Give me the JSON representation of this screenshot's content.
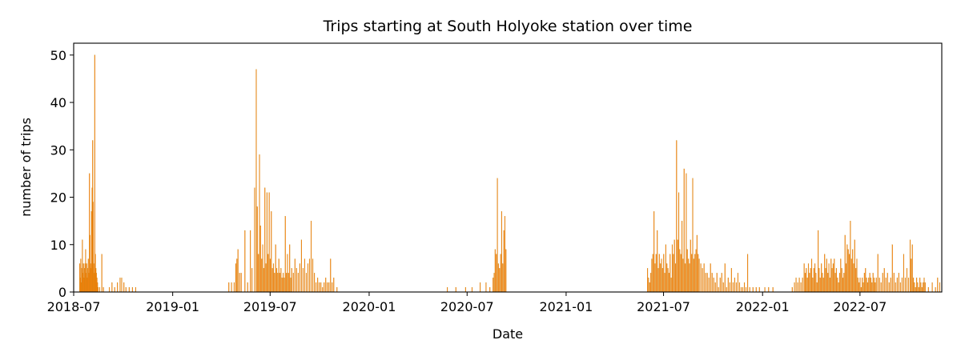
{
  "chart_data": {
    "type": "bar",
    "title": "Trips starting at South Holyoke station over time",
    "xlabel": "Date",
    "ylabel": "number of trips",
    "xlim": [
      "2018-07-01",
      "2022-11-30"
    ],
    "ylim": [
      0,
      52.5
    ],
    "x_ticks": [
      "2018-07",
      "2019-01",
      "2019-07",
      "2020-01",
      "2020-07",
      "2021-01",
      "2021-07",
      "2022-01",
      "2022-07"
    ],
    "y_ticks": [
      0,
      10,
      20,
      30,
      40,
      50
    ],
    "grid": false,
    "bar_color": "#ff7f0e",
    "bar_edge_color": "#b8860b",
    "points": [
      [
        "2018-07-12",
        6
      ],
      [
        "2018-07-13",
        3
      ],
      [
        "2018-07-14",
        7
      ],
      [
        "2018-07-15",
        2
      ],
      [
        "2018-07-16",
        5
      ],
      [
        "2018-07-17",
        11
      ],
      [
        "2018-07-18",
        4
      ],
      [
        "2018-07-19",
        6
      ],
      [
        "2018-07-20",
        3
      ],
      [
        "2018-07-21",
        5
      ],
      [
        "2018-07-22",
        6
      ],
      [
        "2018-07-23",
        9
      ],
      [
        "2018-07-24",
        4
      ],
      [
        "2018-07-25",
        6
      ],
      [
        "2018-07-26",
        3
      ],
      [
        "2018-07-27",
        5
      ],
      [
        "2018-07-28",
        7
      ],
      [
        "2018-07-29",
        4
      ],
      [
        "2018-07-30",
        25
      ],
      [
        "2018-07-31",
        12
      ],
      [
        "2018-08-01",
        6
      ],
      [
        "2018-08-02",
        5
      ],
      [
        "2018-08-03",
        17
      ],
      [
        "2018-08-04",
        22
      ],
      [
        "2018-08-05",
        32
      ],
      [
        "2018-08-06",
        19
      ],
      [
        "2018-08-07",
        6
      ],
      [
        "2018-08-08",
        4
      ],
      [
        "2018-08-09",
        50
      ],
      [
        "2018-08-10",
        8
      ],
      [
        "2018-08-11",
        5
      ],
      [
        "2018-08-12",
        4
      ],
      [
        "2018-08-13",
        3
      ],
      [
        "2018-08-14",
        2
      ],
      [
        "2018-08-15",
        1
      ],
      [
        "2018-08-18",
        1
      ],
      [
        "2018-08-22",
        8
      ],
      [
        "2018-08-25",
        1
      ],
      [
        "2018-09-05",
        1
      ],
      [
        "2018-09-10",
        2
      ],
      [
        "2018-09-15",
        1
      ],
      [
        "2018-09-20",
        2
      ],
      [
        "2018-09-25",
        3
      ],
      [
        "2018-09-28",
        3
      ],
      [
        "2018-10-02",
        2
      ],
      [
        "2018-10-06",
        1
      ],
      [
        "2018-10-12",
        1
      ],
      [
        "2018-10-18",
        1
      ],
      [
        "2018-10-24",
        1
      ],
      [
        "2019-04-15",
        2
      ],
      [
        "2019-04-20",
        2
      ],
      [
        "2019-04-25",
        2
      ],
      [
        "2019-04-28",
        6
      ],
      [
        "2019-04-30",
        7
      ],
      [
        "2019-05-02",
        9
      ],
      [
        "2019-05-05",
        4
      ],
      [
        "2019-05-08",
        4
      ],
      [
        "2019-05-15",
        13
      ],
      [
        "2019-05-20",
        2
      ],
      [
        "2019-05-25",
        13
      ],
      [
        "2019-05-28",
        5
      ],
      [
        "2019-06-02",
        22
      ],
      [
        "2019-06-05",
        47
      ],
      [
        "2019-06-07",
        18
      ],
      [
        "2019-06-09",
        8
      ],
      [
        "2019-06-11",
        29
      ],
      [
        "2019-06-13",
        14
      ],
      [
        "2019-06-15",
        7
      ],
      [
        "2019-06-17",
        10
      ],
      [
        "2019-06-19",
        5
      ],
      [
        "2019-06-21",
        22
      ],
      [
        "2019-06-23",
        6
      ],
      [
        "2019-06-25",
        21
      ],
      [
        "2019-06-27",
        8
      ],
      [
        "2019-06-29",
        21
      ],
      [
        "2019-07-01",
        7
      ],
      [
        "2019-07-03",
        17
      ],
      [
        "2019-07-05",
        5
      ],
      [
        "2019-07-07",
        6
      ],
      [
        "2019-07-09",
        4
      ],
      [
        "2019-07-11",
        10
      ],
      [
        "2019-07-13",
        5
      ],
      [
        "2019-07-15",
        4
      ],
      [
        "2019-07-17",
        7
      ],
      [
        "2019-07-19",
        4
      ],
      [
        "2019-07-21",
        5
      ],
      [
        "2019-07-23",
        3
      ],
      [
        "2019-07-25",
        4
      ],
      [
        "2019-07-27",
        3
      ],
      [
        "2019-07-29",
        16
      ],
      [
        "2019-07-31",
        4
      ],
      [
        "2019-08-02",
        8
      ],
      [
        "2019-08-04",
        4
      ],
      [
        "2019-08-06",
        10
      ],
      [
        "2019-08-08",
        3
      ],
      [
        "2019-08-10",
        5
      ],
      [
        "2019-08-13",
        4
      ],
      [
        "2019-08-16",
        7
      ],
      [
        "2019-08-19",
        5
      ],
      [
        "2019-08-22",
        4
      ],
      [
        "2019-08-25",
        6
      ],
      [
        "2019-08-28",
        11
      ],
      [
        "2019-08-31",
        5
      ],
      [
        "2019-09-03",
        7
      ],
      [
        "2019-09-06",
        4
      ],
      [
        "2019-09-09",
        6
      ],
      [
        "2019-09-12",
        7
      ],
      [
        "2019-09-15",
        15
      ],
      [
        "2019-09-18",
        7
      ],
      [
        "2019-09-21",
        4
      ],
      [
        "2019-09-24",
        2
      ],
      [
        "2019-09-27",
        3
      ],
      [
        "2019-09-30",
        2
      ],
      [
        "2019-10-03",
        2
      ],
      [
        "2019-10-06",
        1
      ],
      [
        "2019-10-09",
        2
      ],
      [
        "2019-10-12",
        3
      ],
      [
        "2019-10-15",
        2
      ],
      [
        "2019-10-18",
        2
      ],
      [
        "2019-10-21",
        7
      ],
      [
        "2019-10-24",
        2
      ],
      [
        "2019-10-27",
        3
      ],
      [
        "2019-11-02",
        1
      ],
      [
        "2020-05-25",
        1
      ],
      [
        "2020-06-10",
        1
      ],
      [
        "2020-06-28",
        1
      ],
      [
        "2020-07-10",
        1
      ],
      [
        "2020-07-25",
        2
      ],
      [
        "2020-08-05",
        2
      ],
      [
        "2020-08-12",
        1
      ],
      [
        "2020-08-18",
        3
      ],
      [
        "2020-08-20",
        4
      ],
      [
        "2020-08-22",
        9
      ],
      [
        "2020-08-24",
        8
      ],
      [
        "2020-08-26",
        24
      ],
      [
        "2020-08-28",
        6
      ],
      [
        "2020-08-30",
        5
      ],
      [
        "2020-09-01",
        8
      ],
      [
        "2020-09-03",
        17
      ],
      [
        "2020-09-05",
        6
      ],
      [
        "2020-09-07",
        13
      ],
      [
        "2020-09-09",
        16
      ],
      [
        "2020-09-11",
        9
      ],
      [
        "2021-06-01",
        5
      ],
      [
        "2021-06-03",
        3
      ],
      [
        "2021-06-05",
        2
      ],
      [
        "2021-06-07",
        4
      ],
      [
        "2021-06-09",
        7
      ],
      [
        "2021-06-11",
        8
      ],
      [
        "2021-06-13",
        17
      ],
      [
        "2021-06-15",
        6
      ],
      [
        "2021-06-17",
        8
      ],
      [
        "2021-06-19",
        13
      ],
      [
        "2021-06-21",
        5
      ],
      [
        "2021-06-23",
        8
      ],
      [
        "2021-06-25",
        6
      ],
      [
        "2021-06-27",
        7
      ],
      [
        "2021-06-29",
        5
      ],
      [
        "2021-07-01",
        8
      ],
      [
        "2021-07-03",
        4
      ],
      [
        "2021-07-05",
        10
      ],
      [
        "2021-07-07",
        6
      ],
      [
        "2021-07-09",
        5
      ],
      [
        "2021-07-11",
        4
      ],
      [
        "2021-07-13",
        8
      ],
      [
        "2021-07-15",
        3
      ],
      [
        "2021-07-17",
        10
      ],
      [
        "2021-07-19",
        8
      ],
      [
        "2021-07-21",
        11
      ],
      [
        "2021-07-23",
        6
      ],
      [
        "2021-07-25",
        32
      ],
      [
        "2021-07-27",
        11
      ],
      [
        "2021-07-29",
        21
      ],
      [
        "2021-07-31",
        9
      ],
      [
        "2021-08-02",
        8
      ],
      [
        "2021-08-04",
        15
      ],
      [
        "2021-08-06",
        7
      ],
      [
        "2021-08-08",
        26
      ],
      [
        "2021-08-10",
        6
      ],
      [
        "2021-08-12",
        25
      ],
      [
        "2021-08-14",
        9
      ],
      [
        "2021-08-16",
        7
      ],
      [
        "2021-08-18",
        6
      ],
      [
        "2021-08-20",
        11
      ],
      [
        "2021-08-22",
        8
      ],
      [
        "2021-08-24",
        24
      ],
      [
        "2021-08-26",
        7
      ],
      [
        "2021-08-28",
        8
      ],
      [
        "2021-08-30",
        9
      ],
      [
        "2021-09-01",
        12
      ],
      [
        "2021-09-03",
        8
      ],
      [
        "2021-09-05",
        7
      ],
      [
        "2021-09-08",
        6
      ],
      [
        "2021-09-11",
        5
      ],
      [
        "2021-09-14",
        6
      ],
      [
        "2021-09-17",
        4
      ],
      [
        "2021-09-20",
        4
      ],
      [
        "2021-09-23",
        3
      ],
      [
        "2021-09-26",
        6
      ],
      [
        "2021-09-29",
        4
      ],
      [
        "2021-10-02",
        3
      ],
      [
        "2021-10-05",
        2
      ],
      [
        "2021-10-08",
        4
      ],
      [
        "2021-10-11",
        1
      ],
      [
        "2021-10-14",
        3
      ],
      [
        "2021-10-17",
        4
      ],
      [
        "2021-10-20",
        2
      ],
      [
        "2021-10-23",
        6
      ],
      [
        "2021-10-26",
        1
      ],
      [
        "2021-10-29",
        3
      ],
      [
        "2021-11-01",
        2
      ],
      [
        "2021-11-04",
        5
      ],
      [
        "2021-11-07",
        2
      ],
      [
        "2021-11-10",
        3
      ],
      [
        "2021-11-13",
        2
      ],
      [
        "2021-11-16",
        4
      ],
      [
        "2021-11-19",
        2
      ],
      [
        "2021-11-22",
        1
      ],
      [
        "2021-11-25",
        1
      ],
      [
        "2021-11-28",
        2
      ],
      [
        "2021-12-01",
        1
      ],
      [
        "2021-12-04",
        8
      ],
      [
        "2021-12-08",
        1
      ],
      [
        "2021-12-14",
        1
      ],
      [
        "2021-12-20",
        1
      ],
      [
        "2021-12-26",
        1
      ],
      [
        "2022-01-05",
        1
      ],
      [
        "2022-01-12",
        1
      ],
      [
        "2022-01-20",
        1
      ],
      [
        "2022-02-25",
        1
      ],
      [
        "2022-03-01",
        2
      ],
      [
        "2022-03-04",
        3
      ],
      [
        "2022-03-07",
        2
      ],
      [
        "2022-03-10",
        3
      ],
      [
        "2022-03-13",
        2
      ],
      [
        "2022-03-16",
        3
      ],
      [
        "2022-03-19",
        6
      ],
      [
        "2022-03-21",
        4
      ],
      [
        "2022-03-23",
        5
      ],
      [
        "2022-03-25",
        3
      ],
      [
        "2022-03-27",
        6
      ],
      [
        "2022-03-29",
        4
      ],
      [
        "2022-03-31",
        5
      ],
      [
        "2022-04-02",
        7
      ],
      [
        "2022-04-04",
        3
      ],
      [
        "2022-04-06",
        5
      ],
      [
        "2022-04-08",
        6
      ],
      [
        "2022-04-10",
        4
      ],
      [
        "2022-04-12",
        2
      ],
      [
        "2022-04-14",
        13
      ],
      [
        "2022-04-16",
        5
      ],
      [
        "2022-04-18",
        3
      ],
      [
        "2022-04-20",
        6
      ],
      [
        "2022-04-22",
        4
      ],
      [
        "2022-04-24",
        3
      ],
      [
        "2022-04-26",
        8
      ],
      [
        "2022-04-28",
        5
      ],
      [
        "2022-04-30",
        7
      ],
      [
        "2022-05-02",
        4
      ],
      [
        "2022-05-04",
        6
      ],
      [
        "2022-05-06",
        3
      ],
      [
        "2022-05-08",
        7
      ],
      [
        "2022-05-10",
        5
      ],
      [
        "2022-05-12",
        6
      ],
      [
        "2022-05-14",
        7
      ],
      [
        "2022-05-16",
        4
      ],
      [
        "2022-05-18",
        5
      ],
      [
        "2022-05-20",
        3
      ],
      [
        "2022-05-22",
        2
      ],
      [
        "2022-05-24",
        4
      ],
      [
        "2022-05-26",
        7
      ],
      [
        "2022-05-28",
        5
      ],
      [
        "2022-05-30",
        3
      ],
      [
        "2022-06-01",
        4
      ],
      [
        "2022-06-03",
        12
      ],
      [
        "2022-06-05",
        6
      ],
      [
        "2022-06-07",
        10
      ],
      [
        "2022-06-09",
        9
      ],
      [
        "2022-06-11",
        8
      ],
      [
        "2022-06-13",
        15
      ],
      [
        "2022-06-15",
        7
      ],
      [
        "2022-06-17",
        9
      ],
      [
        "2022-06-19",
        6
      ],
      [
        "2022-06-21",
        11
      ],
      [
        "2022-06-23",
        5
      ],
      [
        "2022-06-25",
        7
      ],
      [
        "2022-06-27",
        3
      ],
      [
        "2022-06-29",
        2
      ],
      [
        "2022-07-01",
        3
      ],
      [
        "2022-07-03",
        1
      ],
      [
        "2022-07-05",
        3
      ],
      [
        "2022-07-07",
        2
      ],
      [
        "2022-07-09",
        4
      ],
      [
        "2022-07-11",
        5
      ],
      [
        "2022-07-13",
        3
      ],
      [
        "2022-07-15",
        2
      ],
      [
        "2022-07-17",
        3
      ],
      [
        "2022-07-19",
        4
      ],
      [
        "2022-07-21",
        3
      ],
      [
        "2022-07-23",
        2
      ],
      [
        "2022-07-25",
        4
      ],
      [
        "2022-07-27",
        3
      ],
      [
        "2022-07-29",
        2
      ],
      [
        "2022-07-31",
        3
      ],
      [
        "2022-08-03",
        8
      ],
      [
        "2022-08-06",
        3
      ],
      [
        "2022-08-09",
        2
      ],
      [
        "2022-08-12",
        4
      ],
      [
        "2022-08-15",
        5
      ],
      [
        "2022-08-18",
        3
      ],
      [
        "2022-08-21",
        4
      ],
      [
        "2022-08-24",
        2
      ],
      [
        "2022-08-27",
        3
      ],
      [
        "2022-08-30",
        10
      ],
      [
        "2022-09-02",
        4
      ],
      [
        "2022-09-05",
        2
      ],
      [
        "2022-09-08",
        3
      ],
      [
        "2022-09-11",
        4
      ],
      [
        "2022-09-14",
        2
      ],
      [
        "2022-09-17",
        3
      ],
      [
        "2022-09-20",
        8
      ],
      [
        "2022-09-23",
        3
      ],
      [
        "2022-09-26",
        5
      ],
      [
        "2022-09-29",
        3
      ],
      [
        "2022-10-02",
        11
      ],
      [
        "2022-10-04",
        7
      ],
      [
        "2022-10-06",
        10
      ],
      [
        "2022-10-08",
        3
      ],
      [
        "2022-10-10",
        2
      ],
      [
        "2022-10-12",
        1
      ],
      [
        "2022-10-14",
        3
      ],
      [
        "2022-10-16",
        2
      ],
      [
        "2022-10-18",
        1
      ],
      [
        "2022-10-20",
        3
      ],
      [
        "2022-10-22",
        2
      ],
      [
        "2022-10-24",
        1
      ],
      [
        "2022-10-26",
        2
      ],
      [
        "2022-10-28",
        3
      ],
      [
        "2022-10-30",
        2
      ],
      [
        "2022-11-05",
        1
      ],
      [
        "2022-11-12",
        2
      ],
      [
        "2022-11-18",
        1
      ],
      [
        "2022-11-22",
        3
      ],
      [
        "2022-11-26",
        2
      ]
    ]
  }
}
